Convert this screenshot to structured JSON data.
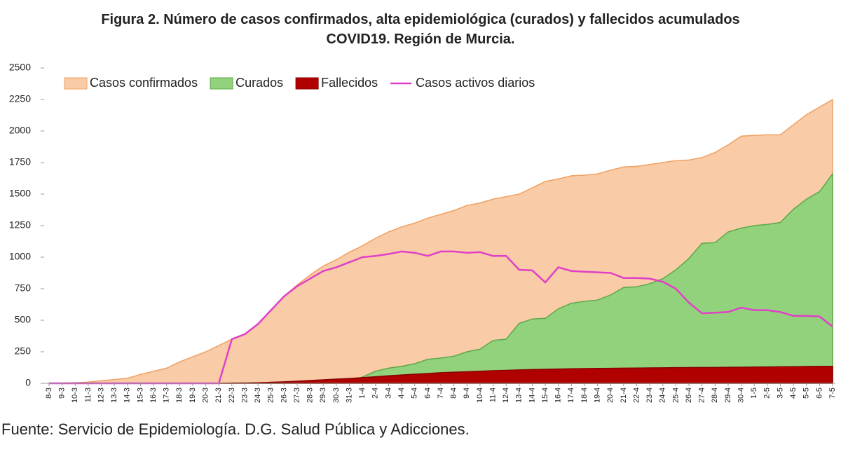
{
  "chart_data": {
    "type": "area",
    "title": "Figura 2. Número de casos confirmados, alta epidemiológica (curados) y fallecidos acumulados COVID19. Región de Murcia.",
    "source": "Fuente: Servicio de Epidemiología. D.G. Salud Pública y Adicciones.",
    "categories": [
      "8-3",
      "9-3",
      "10-3",
      "11-3",
      "12-3",
      "13-3",
      "14-3",
      "15-3",
      "16-3",
      "17-3",
      "18-3",
      "19-3",
      "20-3",
      "21-3",
      "22-3",
      "23-3",
      "24-3",
      "25-3",
      "26-3",
      "27-3",
      "28-3",
      "29-3",
      "30-3",
      "31-3",
      "1-4",
      "2-4",
      "3-4",
      "4-4",
      "5-4",
      "6-4",
      "7-4",
      "8-4",
      "9-4",
      "10-4",
      "11-4",
      "12-4",
      "13-4",
      "14-4",
      "15-4",
      "16-4",
      "17-4",
      "18-4",
      "19-4",
      "20-4",
      "21-4",
      "22-4",
      "23-4",
      "24-4",
      "25-4",
      "26-4",
      "27-4",
      "28-4",
      "29-4",
      "30-4",
      "1-5",
      "2-5",
      "3-5",
      "4-5",
      "5-5",
      "6-5",
      "7-5"
    ],
    "series": [
      {
        "name": "Casos confirmados",
        "kind": "area",
        "color": "#f9cba6",
        "stroke": "#f0a060",
        "values": [
          1,
          2,
          5,
          10,
          20,
          30,
          40,
          70,
          95,
          120,
          170,
          210,
          250,
          300,
          350,
          390,
          470,
          580,
          690,
          780,
          860,
          930,
          980,
          1040,
          1090,
          1150,
          1200,
          1240,
          1270,
          1310,
          1340,
          1370,
          1410,
          1430,
          1460,
          1480,
          1500,
          1550,
          1600,
          1620,
          1645,
          1650,
          1660,
          1690,
          1715,
          1720,
          1735,
          1750,
          1765,
          1770,
          1790,
          1830,
          1890,
          1960,
          1965,
          1970,
          1970,
          2050,
          2130,
          2190,
          2250
        ]
      },
      {
        "name": "Curados",
        "kind": "area",
        "color": "#92d27c",
        "stroke": "#5da84a",
        "values": [
          0,
          0,
          0,
          0,
          0,
          0,
          0,
          0,
          0,
          0,
          0,
          0,
          0,
          0,
          0,
          0,
          0,
          0,
          0,
          0,
          0,
          0,
          5,
          20,
          50,
          95,
          120,
          135,
          155,
          190,
          200,
          215,
          250,
          270,
          340,
          350,
          475,
          510,
          515,
          590,
          635,
          650,
          660,
          700,
          760,
          765,
          790,
          830,
          900,
          990,
          1110,
          1115,
          1200,
          1230,
          1250,
          1260,
          1275,
          1380,
          1460,
          1520,
          1660
        ]
      },
      {
        "name": "Fallecidos",
        "kind": "area",
        "color": "#b00000",
        "stroke": "#8a0000",
        "values": [
          0,
          0,
          0,
          0,
          0,
          0,
          0,
          0,
          0,
          0,
          0,
          0,
          0,
          0,
          2,
          3,
          5,
          8,
          12,
          17,
          22,
          28,
          33,
          38,
          45,
          52,
          60,
          66,
          72,
          78,
          84,
          88,
          92,
          96,
          100,
          103,
          106,
          109,
          111,
          113,
          115,
          117,
          118,
          119,
          120,
          121,
          122,
          123,
          124,
          125,
          126,
          126,
          127,
          128,
          129,
          130,
          131,
          132,
          133,
          134,
          135
        ]
      },
      {
        "name": "Casos activos diarios",
        "kind": "line",
        "color": "#e040c8",
        "values": [
          0,
          0,
          0,
          0,
          0,
          0,
          0,
          0,
          0,
          0,
          0,
          0,
          0,
          0,
          350,
          390,
          470,
          580,
          690,
          770,
          830,
          890,
          920,
          960,
          1000,
          1010,
          1025,
          1045,
          1035,
          1010,
          1045,
          1045,
          1035,
          1040,
          1010,
          1010,
          900,
          895,
          800,
          920,
          890,
          885,
          880,
          875,
          835,
          835,
          830,
          805,
          750,
          640,
          555,
          560,
          565,
          600,
          580,
          580,
          565,
          535,
          535,
          530,
          450
        ]
      }
    ],
    "ylim": [
      0,
      2500
    ],
    "yticks": [
      0,
      250,
      500,
      750,
      1000,
      1250,
      1500,
      1750,
      2000,
      2250,
      2500
    ],
    "legend": "top-left",
    "grid": false
  }
}
